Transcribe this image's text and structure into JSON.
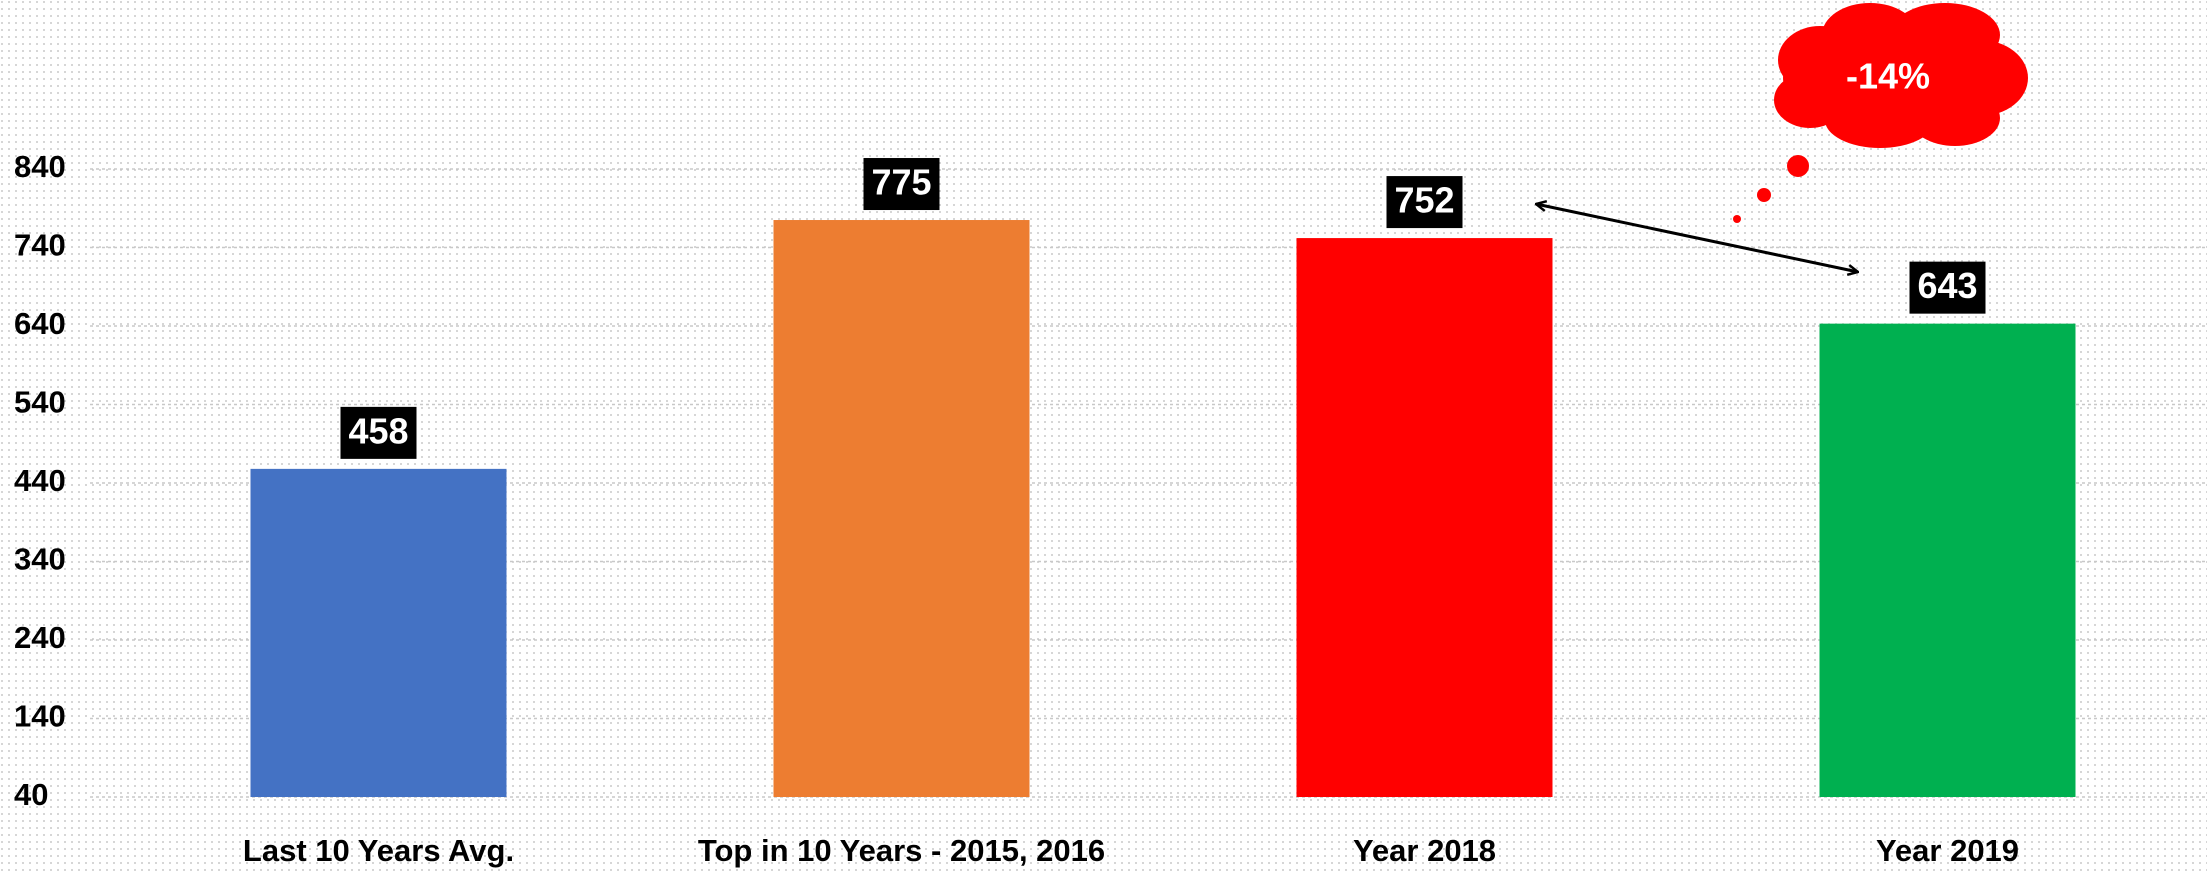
{
  "chart_data": {
    "type": "bar",
    "categories": [
      "Last 10 Years Avg.",
      "Top in 10 Years - 2015, 2016",
      "Year 2018",
      "Year 2019"
    ],
    "values": [
      458,
      775,
      752,
      643
    ],
    "colors": [
      "#4472c4",
      "#ed7d31",
      "#ff0000",
      "#00b050"
    ],
    "ylim": [
      40,
      840
    ],
    "yticks": [
      40,
      140,
      240,
      340,
      440,
      540,
      640,
      740,
      840
    ],
    "grid": true,
    "annotation": "-14%"
  }
}
